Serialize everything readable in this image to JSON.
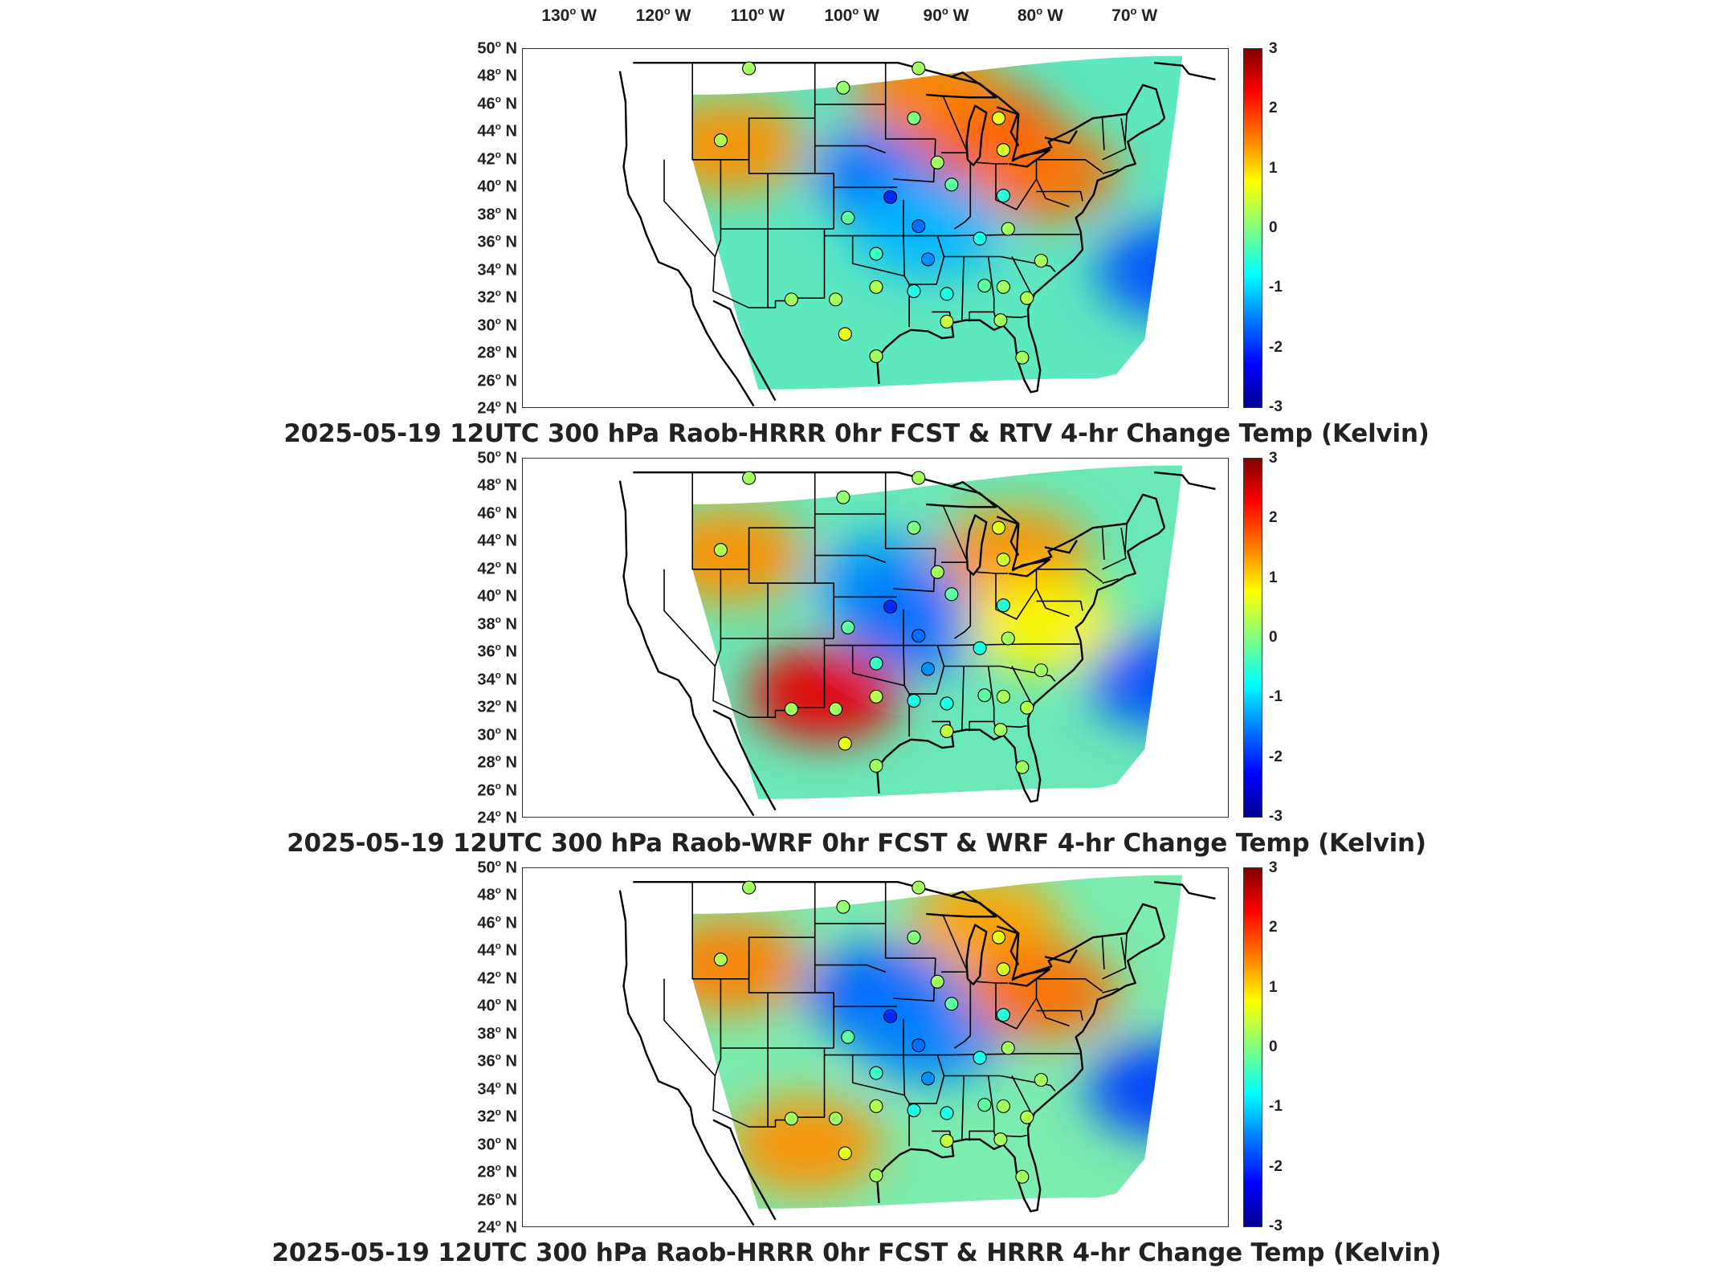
{
  "top_axis": {
    "longitude_labels": [
      "130",
      "120",
      "110",
      "100",
      "90",
      "80",
      "70"
    ],
    "hemisphere": "W",
    "degree_symbol": "o"
  },
  "latitude_axis": {
    "labels": [
      "50",
      "48",
      "46",
      "44",
      "42",
      "40",
      "38",
      "36",
      "34",
      "32",
      "30",
      "28",
      "26",
      "24"
    ],
    "hemisphere": "N",
    "degree_symbol": "o"
  },
  "colorbar": {
    "ticks": [
      "3",
      "2",
      "1",
      "0",
      "-1",
      "-2",
      "-3"
    ],
    "colormap": [
      "#800000",
      "#ff0000",
      "#ff7f00",
      "#ffff00",
      "#80ff80",
      "#00ffff",
      "#0080ff",
      "#0000ff",
      "#00008f"
    ]
  },
  "panels": [
    {
      "title": "2025-05-19 12UTC 300 hPa Raob-HRRR 0hr FCST & RTV 4-hr Change Temp (Kelvin)",
      "base_color": "#5ee8c0",
      "blobs": [
        {
          "lon": -96,
          "lat": 41,
          "value": -1.6
        },
        {
          "lon": -86,
          "lat": 44,
          "value": 1.8
        },
        {
          "lon": -80,
          "lat": 41,
          "value": 1.6
        },
        {
          "lon": -92,
          "lat": 47,
          "value": 1.5
        },
        {
          "lon": -66,
          "lat": 34,
          "value": -1.8
        },
        {
          "lon": -113,
          "lat": 43,
          "value": 1.4
        },
        {
          "lon": -92,
          "lat": 37,
          "value": -1.2
        }
      ]
    },
    {
      "title": "2025-05-19 12UTC 300 hPa Raob-WRF 0hr FCST & WRF 4-hr Change Temp (Kelvin)",
      "base_color": "#6ae8b8",
      "blobs": [
        {
          "lon": -96,
          "lat": 41,
          "value": -1.4
        },
        {
          "lon": -93,
          "lat": 38,
          "value": -1.6
        },
        {
          "lon": -83,
          "lat": 43,
          "value": 1.4
        },
        {
          "lon": -103,
          "lat": 33,
          "value": 2.4
        },
        {
          "lon": -67,
          "lat": 34,
          "value": -1.8
        },
        {
          "lon": -113,
          "lat": 43,
          "value": 1.4
        },
        {
          "lon": -80,
          "lat": 38,
          "value": 0.8
        }
      ]
    },
    {
      "title": "2025-05-19 12UTC 300 hPa Raob-HRRR 0hr FCST & HRRR 4-hr Change Temp (Kelvin)",
      "base_color": "#7cecb0",
      "blobs": [
        {
          "lon": -97,
          "lat": 41,
          "value": -1.7
        },
        {
          "lon": -92,
          "lat": 38,
          "value": -1.5
        },
        {
          "lon": -86,
          "lat": 46,
          "value": 1.3
        },
        {
          "lon": -80,
          "lat": 41,
          "value": 1.6
        },
        {
          "lon": -105,
          "lat": 30,
          "value": 1.4
        },
        {
          "lon": -67,
          "lat": 34,
          "value": -1.9
        },
        {
          "lon": -113,
          "lat": 43,
          "value": 1.5
        }
      ]
    }
  ],
  "stations": [
    {
      "lon": -111,
      "lat": 48.6,
      "value": 0.2
    },
    {
      "lon": -101,
      "lat": 47.2,
      "value": 0.1
    },
    {
      "lon": -93,
      "lat": 48.6,
      "value": 0.2
    },
    {
      "lon": -93.5,
      "lat": 45.0,
      "value": 0.0
    },
    {
      "lon": -84.5,
      "lat": 45.0,
      "value": 0.6
    },
    {
      "lon": -114,
      "lat": 43.4,
      "value": 0.3
    },
    {
      "lon": -84,
      "lat": 42.7,
      "value": 0.5
    },
    {
      "lon": -91,
      "lat": 41.8,
      "value": 0.2
    },
    {
      "lon": -89.5,
      "lat": 40.2,
      "value": -0.2
    },
    {
      "lon": -96,
      "lat": 39.3,
      "value": -2.0
    },
    {
      "lon": -84,
      "lat": 39.4,
      "value": -0.5
    },
    {
      "lon": -100.5,
      "lat": 37.8,
      "value": -0.2
    },
    {
      "lon": -93,
      "lat": 37.2,
      "value": -1.6
    },
    {
      "lon": -86.5,
      "lat": 36.3,
      "value": -0.6
    },
    {
      "lon": -83.5,
      "lat": 37.0,
      "value": 0.2
    },
    {
      "lon": -97.5,
      "lat": 35.2,
      "value": -0.4
    },
    {
      "lon": -92,
      "lat": 34.8,
      "value": -1.4
    },
    {
      "lon": -80,
      "lat": 34.7,
      "value": 0.2
    },
    {
      "lon": -106.5,
      "lat": 31.9,
      "value": 0.2
    },
    {
      "lon": -101.8,
      "lat": 31.9,
      "value": 0.2
    },
    {
      "lon": -97.5,
      "lat": 32.8,
      "value": 0.3
    },
    {
      "lon": -93.5,
      "lat": 32.5,
      "value": -0.6
    },
    {
      "lon": -90,
      "lat": 32.3,
      "value": -0.6
    },
    {
      "lon": -86,
      "lat": 32.9,
      "value": -0.2
    },
    {
      "lon": -84,
      "lat": 32.8,
      "value": 0.2
    },
    {
      "lon": -81.5,
      "lat": 32.0,
      "value": 0.3
    },
    {
      "lon": -100.8,
      "lat": 29.4,
      "value": 0.6
    },
    {
      "lon": -97.5,
      "lat": 27.8,
      "value": 0.2
    },
    {
      "lon": -90,
      "lat": 30.3,
      "value": 0.4
    },
    {
      "lon": -84.3,
      "lat": 30.4,
      "value": 0.2
    },
    {
      "lon": -82,
      "lat": 27.7,
      "value": 0.2
    }
  ]
}
